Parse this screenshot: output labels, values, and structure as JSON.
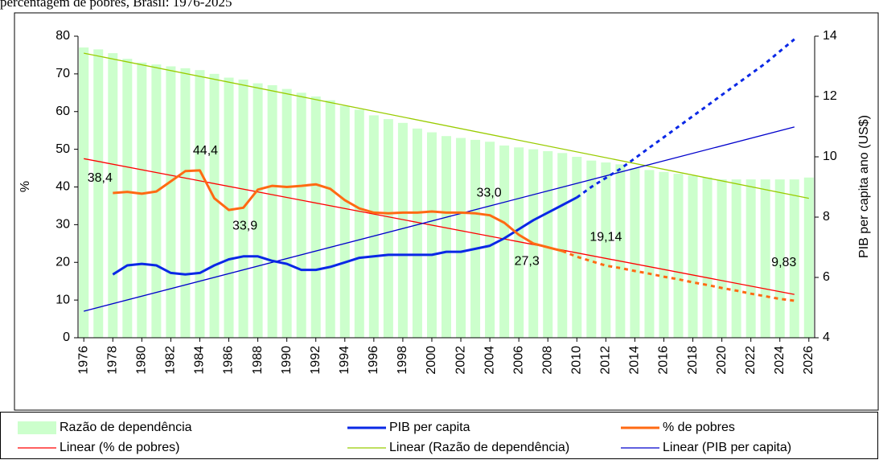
{
  "chart_data": {
    "type": "combo",
    "title": "percentagem de pobres, Brasil: 1976-2025",
    "y_label": "%",
    "y2_label": "PIB per capita ano (US$)",
    "x": [
      1976,
      1977,
      1978,
      1979,
      1980,
      1981,
      1982,
      1983,
      1984,
      1985,
      1986,
      1987,
      1988,
      1989,
      1990,
      1991,
      1992,
      1993,
      1994,
      1995,
      1996,
      1997,
      1998,
      1999,
      2000,
      2001,
      2002,
      2003,
      2004,
      2005,
      2006,
      2007,
      2008,
      2009,
      2010,
      2011,
      2012,
      2013,
      2014,
      2015,
      2016,
      2017,
      2018,
      2019,
      2020,
      2021,
      2022,
      2023,
      2024,
      2025,
      2026
    ],
    "xlim": [
      1975.6,
      2026.4
    ],
    "xticks": [
      1976,
      1978,
      1980,
      1982,
      1984,
      1986,
      1988,
      1990,
      1992,
      1994,
      1996,
      1998,
      2000,
      2002,
      2004,
      2006,
      2008,
      2010,
      2012,
      2014,
      2016,
      2018,
      2020,
      2022,
      2024,
      2026
    ],
    "ylim": [
      0,
      80
    ],
    "yticks": [
      0,
      10,
      20,
      30,
      40,
      50,
      60,
      70,
      80
    ],
    "y2lim": [
      4,
      14
    ],
    "y2ticks": [
      4,
      6,
      8,
      10,
      12,
      14
    ],
    "series": [
      {
        "name": "Razão de dependência",
        "type": "bar",
        "color": "#ccffcc",
        "values": [
          77,
          76.5,
          75.5,
          74,
          73,
          72.5,
          72,
          71.5,
          71,
          70,
          69,
          68.5,
          67.5,
          67,
          66,
          65,
          64,
          63,
          61.5,
          60.5,
          59,
          58,
          57,
          55.5,
          54.5,
          53.5,
          53,
          52.5,
          52,
          51,
          50.5,
          50,
          49.5,
          49,
          48,
          47,
          46.5,
          46,
          45,
          44.5,
          44,
          43.5,
          43,
          42.5,
          42,
          42,
          42,
          42,
          42,
          42,
          42.5
        ]
      },
      {
        "name": "PIB per capita",
        "type": "line",
        "axis": "y2",
        "color": "#0a28e6",
        "dashed_from": 2010,
        "values": [
          null,
          null,
          6.1,
          6.4,
          6.45,
          6.4,
          6.15,
          6.1,
          6.15,
          6.4,
          6.6,
          6.7,
          6.7,
          6.55,
          6.45,
          6.25,
          6.25,
          6.35,
          6.5,
          6.65,
          6.7,
          6.75,
          6.75,
          6.75,
          6.75,
          6.85,
          6.85,
          6.95,
          7.05,
          7.3,
          7.6,
          7.9,
          8.15,
          8.4,
          8.65,
          9.0,
          9.3,
          9.6,
          9.95,
          10.3,
          10.65,
          11.0,
          11.35,
          11.7,
          12.05,
          12.4,
          12.75,
          13.1,
          13.5,
          13.9,
          null
        ]
      },
      {
        "name": "% de pobres",
        "type": "line",
        "color": "#ff6a13",
        "dashed_from": 2009,
        "values": [
          null,
          null,
          38.4,
          38.7,
          38.2,
          38.8,
          41.5,
          44.2,
          44.4,
          37,
          33.9,
          34.5,
          39.3,
          40.3,
          40,
          40.3,
          40.7,
          39.5,
          36.5,
          34.3,
          33.2,
          33,
          33.2,
          33.2,
          33.5,
          33.2,
          33.2,
          33.0,
          32.5,
          30.5,
          27.3,
          25,
          24,
          23,
          21.5,
          20.3,
          19.14,
          18.5,
          17.7,
          17,
          16.2,
          15.5,
          14.7,
          14,
          13.2,
          12.5,
          11.7,
          11,
          10.3,
          9.83,
          null
        ],
        "value_labels": [
          null,
          null,
          "38,4",
          null,
          null,
          null,
          null,
          null,
          "44,4",
          null,
          "33,9",
          null,
          null,
          null,
          null,
          null,
          null,
          null,
          null,
          null,
          null,
          null,
          null,
          null,
          null,
          null,
          null,
          "33,0",
          null,
          null,
          "27,3",
          null,
          null,
          null,
          null,
          null,
          "19,14",
          null,
          null,
          null,
          null,
          null,
          null,
          null,
          null,
          null,
          null,
          null,
          null,
          "9,83",
          null
        ]
      },
      {
        "name": "Linear (% de pobres)",
        "type": "line",
        "color": "#ff0000",
        "x": [
          1976,
          2025
        ],
        "values": [
          47.5,
          11.5
        ]
      },
      {
        "name": "Linear (Razão de dependência)",
        "type": "line",
        "color": "#99cc00",
        "x": [
          1976,
          2026
        ],
        "values": [
          75.5,
          37
        ]
      },
      {
        "name": "Linear (PIB per capita)",
        "type": "line",
        "axis": "y2",
        "color": "#0000cc",
        "x": [
          1976,
          2025
        ],
        "values": [
          4.88,
          10.99
        ]
      }
    ]
  }
}
